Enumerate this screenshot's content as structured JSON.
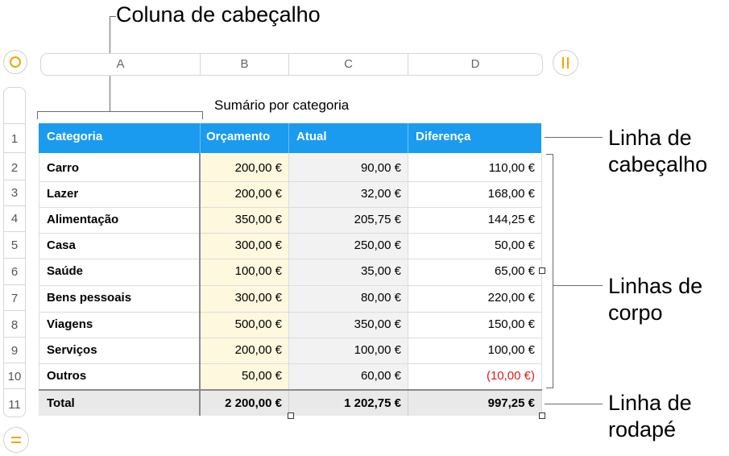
{
  "callouts": {
    "header_column": "Coluna de cabeçalho",
    "header_row": [
      "Linha de",
      "cabeçalho"
    ],
    "body_rows": [
      "Linhas de",
      "corpo"
    ],
    "footer_row": [
      "Linha de",
      "rodapé"
    ]
  },
  "column_letters": [
    "A",
    "B",
    "C",
    "D"
  ],
  "row_numbers": [
    "1",
    "2",
    "3",
    "4",
    "5",
    "6",
    "7",
    "8",
    "9",
    "10",
    "11"
  ],
  "table": {
    "title": "Sumário por categoria",
    "headers": [
      "Categoria",
      "Orçamento",
      "Atual",
      "Diferença"
    ],
    "rows": [
      {
        "category": "Carro",
        "budget": "200,00 €",
        "actual": "90,00 €",
        "diff": "110,00 €"
      },
      {
        "category": "Lazer",
        "budget": "200,00 €",
        "actual": "32,00 €",
        "diff": "168,00 €"
      },
      {
        "category": "Alimentação",
        "budget": "350,00 €",
        "actual": "205,75 €",
        "diff": "144,25 €"
      },
      {
        "category": "Casa",
        "budget": "300,00 €",
        "actual": "250,00 €",
        "diff": "50,00 €"
      },
      {
        "category": "Saúde",
        "budget": "100,00 €",
        "actual": "35,00 €",
        "diff": "65,00 €"
      },
      {
        "category": "Bens pessoais",
        "budget": "300,00 €",
        "actual": "80,00 €",
        "diff": "220,00 €"
      },
      {
        "category": "Viagens",
        "budget": "500,00 €",
        "actual": "350,00 €",
        "diff": "150,00 €"
      },
      {
        "category": "Serviços",
        "budget": "200,00 €",
        "actual": "100,00 €",
        "diff": "100,00 €"
      },
      {
        "category": "Outros",
        "budget": "50,00 €",
        "actual": "60,00 €",
        "diff": "(10,00 €)"
      }
    ],
    "footer": {
      "label": "Total",
      "budget": "2 200,00 €",
      "actual": "1 202,75 €",
      "diff": "997,25 €"
    }
  },
  "colors": {
    "header_bg": "#1a9bf0",
    "budget_col_bg": "#fdf8de",
    "actual_col_bg": "#f2f2f2",
    "footer_bg": "#e9e9e9",
    "negative": "#e01b1b",
    "toolbar_accent": "#f2a500"
  },
  "icons": {
    "select_table": "circle-outline-icon",
    "add_column": "pause-bars-icon",
    "add_row": "equals-icon"
  }
}
